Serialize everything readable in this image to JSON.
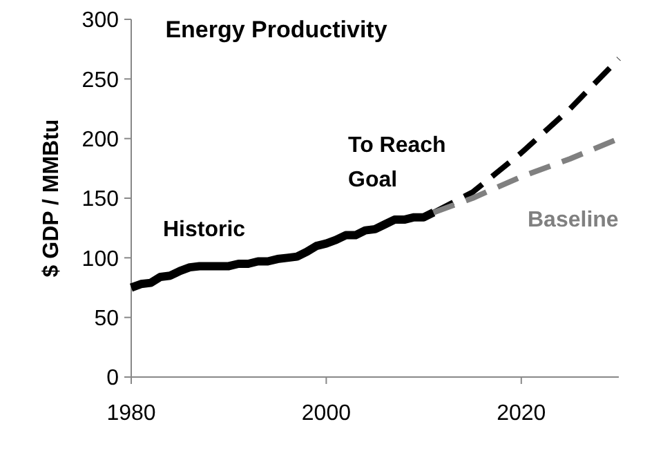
{
  "chart_data": {
    "type": "line",
    "title": "Energy Productivity",
    "ylabel": "$ GDP / MMBtu",
    "xlim": [
      1980,
      2030
    ],
    "xticks": [
      1980,
      2000,
      2020
    ],
    "ylim": [
      0,
      300
    ],
    "yticks": [
      0,
      50,
      100,
      150,
      200,
      250,
      300
    ],
    "grid": false,
    "series": [
      {
        "name": "Historic",
        "color": "#000000",
        "line_style": "solid",
        "x": [
          1980,
          1981,
          1982,
          1983,
          1984,
          1985,
          1986,
          1987,
          1988,
          1989,
          1990,
          1991,
          1992,
          1993,
          1994,
          1995,
          1996,
          1997,
          1998,
          1999,
          2000,
          2001,
          2002,
          2003,
          2004,
          2005,
          2006,
          2007,
          2008,
          2009,
          2010,
          2011
        ],
        "values": [
          75,
          78,
          79,
          84,
          85,
          89,
          92,
          93,
          93,
          93,
          93,
          95,
          95,
          97,
          97,
          99,
          100,
          101,
          105,
          110,
          112,
          115,
          119,
          119,
          123,
          124,
          128,
          132,
          132,
          134,
          134,
          138
        ]
      },
      {
        "name": "To Reach Goal",
        "color": "#000000",
        "line_style": "dashed",
        "x": [
          2011,
          2015,
          2020,
          2025,
          2030
        ],
        "values": [
          138,
          155,
          188,
          225,
          267
        ]
      },
      {
        "name": "Baseline",
        "color": "#808080",
        "line_style": "dashed",
        "x": [
          2011,
          2015,
          2020,
          2025,
          2030
        ],
        "values": [
          138,
          150,
          168,
          183,
          200
        ]
      }
    ]
  }
}
